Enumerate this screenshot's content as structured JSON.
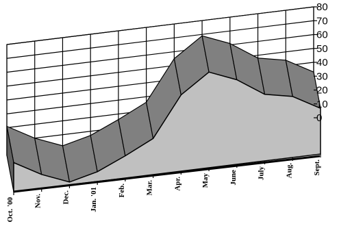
{
  "chart_data": {
    "type": "area",
    "title": "",
    "xlabel": "",
    "ylabel": "",
    "categories": [
      "Oct. '00",
      "Nov.",
      "Dec.",
      "Jan. '01",
      "Feb.",
      "Mar.",
      "Apr.",
      "May",
      "June",
      "July",
      "Aug.",
      "Sept."
    ],
    "series": [
      {
        "values": [
          21,
          10,
          2,
          7,
          16,
          26,
          55,
          69,
          61,
          48,
          44,
          33
        ]
      }
    ],
    "ylim": [
      0,
      80
    ],
    "yticks": [
      0,
      10,
      20,
      30,
      40,
      50,
      60,
      70,
      80
    ],
    "grid": true,
    "three_d": true,
    "legend": "none",
    "colors": {
      "area_front": "#c0c0c0",
      "area_top": "#808080",
      "grid": "#000000",
      "background": "#ffffff"
    }
  }
}
